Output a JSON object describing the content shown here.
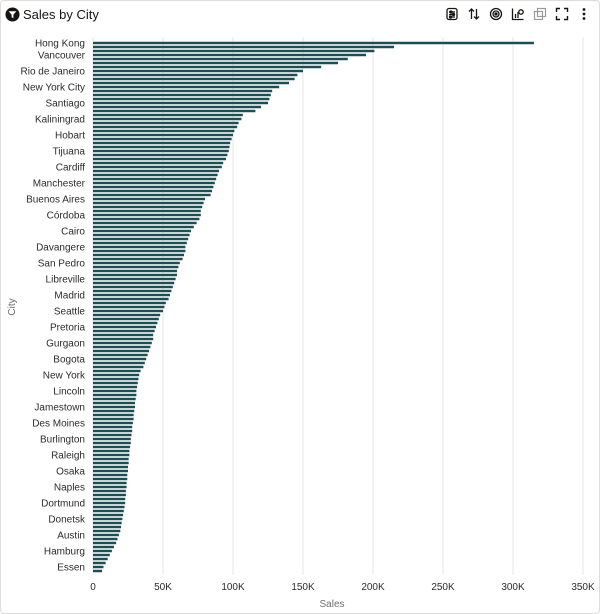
{
  "header": {
    "title": "Sales by City"
  },
  "toolbar": {
    "icons": [
      "filter-icon",
      "sort-icon",
      "target-icon",
      "chart-type-icon",
      "copy-icon",
      "fullscreen-icon",
      "more-icon"
    ]
  },
  "colors": {
    "bar": "#1e4e55",
    "grid": "#e6e6e6"
  },
  "chart_data": {
    "type": "bar",
    "orientation": "horizontal",
    "title": "Sales by City",
    "xlabel": "Sales",
    "ylabel": "City",
    "xlim": [
      0,
      350000
    ],
    "xticks": [
      0,
      50000,
      100000,
      150000,
      200000,
      250000,
      300000,
      350000
    ],
    "xtick_labels": [
      "0",
      "50K",
      "100K",
      "150K",
      "200K",
      "250K",
      "300K",
      "350K"
    ],
    "grid": true,
    "categories": [
      "Hong Kong",
      "",
      "",
      "Vancouver",
      "",
      "",
      "",
      "Rio de Janeiro",
      "",
      "",
      "",
      "New York City",
      "",
      "",
      "",
      "Santiago",
      "",
      "",
      "",
      "Kaliningrad",
      "",
      "",
      "",
      "Hobart",
      "",
      "",
      "",
      "Tijuana",
      "",
      "",
      "",
      "Cardiff",
      "",
      "",
      "",
      "Manchester",
      "",
      "",
      "",
      "Buenos Aires",
      "",
      "",
      "",
      "Córdoba",
      "",
      "",
      "",
      "Cairo",
      "",
      "",
      "",
      "Davangere",
      "",
      "",
      "",
      "San Pedro",
      "",
      "",
      "",
      "Libreville",
      "",
      "",
      "",
      "Madrid",
      "",
      "",
      "",
      "Seattle",
      "",
      "",
      "",
      "Pretoria",
      "",
      "",
      "",
      "Gurgaon",
      "",
      "",
      "",
      "Bogota",
      "",
      "",
      "",
      "New York",
      "",
      "",
      "",
      "Lincoln",
      "",
      "",
      "",
      "Jamestown",
      "",
      "",
      "",
      "Des Moines",
      "",
      "",
      "",
      "Burlington",
      "",
      "",
      "",
      "Raleigh",
      "",
      "",
      "",
      "Osaka",
      "",
      "",
      "",
      "Naples",
      "",
      "",
      "",
      "Dortmund",
      "",
      "",
      "",
      "Donetsk",
      "",
      "",
      "",
      "Austin",
      "",
      "",
      "",
      "Hamburg",
      "",
      "",
      "",
      "Essen",
      ""
    ],
    "values": [
      315000,
      215000,
      201000,
      195000,
      182000,
      175000,
      163000,
      150000,
      146000,
      144000,
      140000,
      133000,
      128000,
      127000,
      126000,
      125000,
      120000,
      116000,
      107000,
      106000,
      104000,
      103000,
      101000,
      100000,
      99000,
      98000,
      97500,
      97000,
      96000,
      95000,
      93000,
      92000,
      90000,
      89000,
      88000,
      87000,
      86000,
      85000,
      84000,
      80000,
      79000,
      78000,
      77000,
      77000,
      76000,
      74000,
      72000,
      70000,
      69000,
      68000,
      67000,
      66000,
      66000,
      65000,
      64000,
      62000,
      61000,
      60000,
      60000,
      59000,
      58000,
      57000,
      56000,
      55000,
      54000,
      52000,
      51000,
      50000,
      48000,
      47000,
      46000,
      45000,
      44000,
      43000,
      43000,
      42000,
      41000,
      40000,
      39000,
      38000,
      37000,
      36000,
      34000,
      33000,
      32500,
      32000,
      31500,
      31000,
      31000,
      30500,
      30000,
      30000,
      29500,
      29000,
      29000,
      28500,
      28000,
      28000,
      27500,
      27000,
      27000,
      26500,
      26000,
      26000,
      25500,
      25500,
      25000,
      25000,
      24500,
      24500,
      24000,
      24000,
      23500,
      23500,
      23000,
      23000,
      22500,
      22000,
      21500,
      21000,
      20500,
      20000,
      19500,
      18500,
      17500,
      16500,
      15000,
      13500,
      12000,
      10500,
      9000,
      7500,
      6500
    ]
  }
}
